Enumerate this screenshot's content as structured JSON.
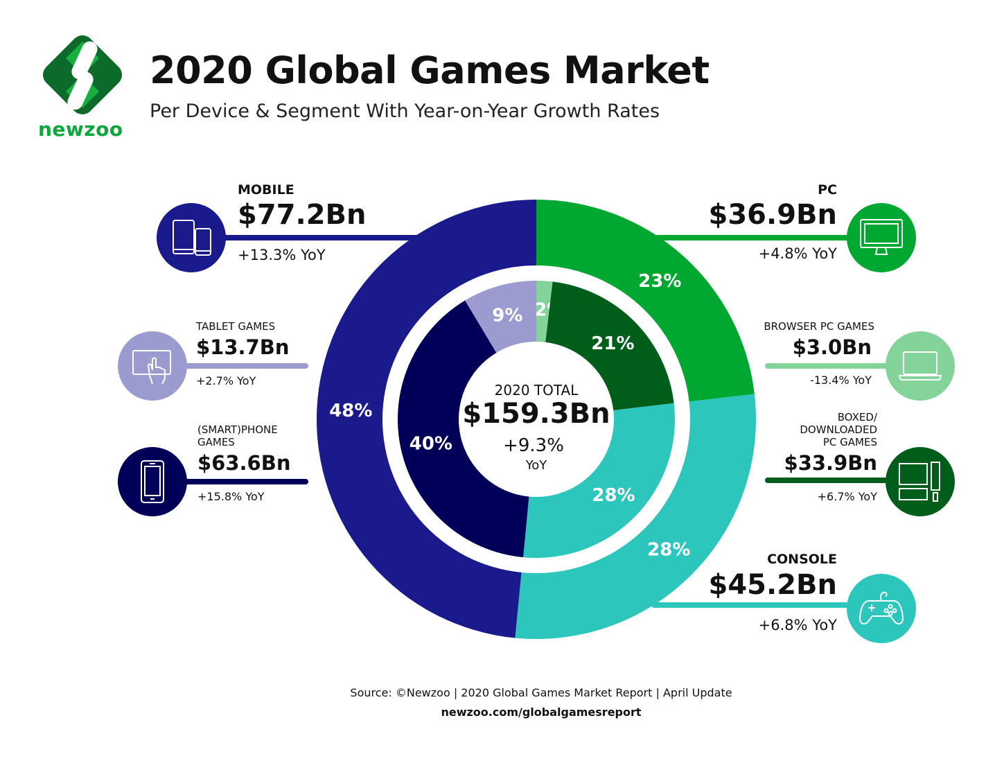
{
  "header": {
    "title": "2020 Global Games Market",
    "subtitle": "Per Device & Segment With Year-on-Year Growth Rates",
    "brand": "newzoo"
  },
  "center": {
    "label": "2020 TOTAL",
    "value": "$159.3Bn",
    "growth": "+9.3%",
    "growth_unit": "YoY"
  },
  "segments": {
    "mobile": {
      "title": "MOBILE",
      "value": "$77.2Bn",
      "yoy": "+13.3% YoY",
      "icon": "mobile-devices-icon"
    },
    "tablet": {
      "title": "TABLET GAMES",
      "value": "$13.7Bn",
      "yoy": "+2.7% YoY",
      "icon": "tablet-touch-icon"
    },
    "smartphone": {
      "title": "(SMART)PHONE GAMES",
      "value": "$63.6Bn",
      "yoy": "+15.8% YoY",
      "icon": "smartphone-icon"
    },
    "pc": {
      "title": "PC",
      "value": "$36.9Bn",
      "yoy": "+4.8% YoY",
      "icon": "monitor-icon"
    },
    "browser": {
      "title": "BROWSER PC GAMES",
      "value": "$3.0Bn",
      "yoy": "-13.4% YoY",
      "icon": "laptop-icon"
    },
    "boxed": {
      "title": "BOXED/ DOWNLOADED PC GAMES",
      "value": "$33.9Bn",
      "yoy": "+6.7% YoY",
      "icon": "desktop-computer-icon"
    },
    "console": {
      "title": "CONSOLE",
      "value": "$45.2Bn",
      "yoy": "+6.8% YoY",
      "icon": "gamepad-icon"
    }
  },
  "footer": {
    "source": "Source: ©Newzoo | 2020 Global Games Market Report | April Update",
    "url": "newzoo.com/globalgamesreport"
  },
  "chart_data": {
    "type": "pie",
    "title": "2020 Global Games Market",
    "rings": [
      {
        "ring": "outer",
        "slices": [
          {
            "name": "PC",
            "value": 36.9,
            "label": "23%",
            "color": "#00a832"
          },
          {
            "name": "CONSOLE",
            "value": 45.2,
            "label": "28%",
            "color": "#2cc6bc"
          },
          {
            "name": "MOBILE",
            "value": 77.2,
            "label": "48%",
            "color": "#1a1a8c"
          }
        ]
      },
      {
        "ring": "inner",
        "slices": [
          {
            "name": "BROWSER PC GAMES",
            "value": 3.0,
            "label": "2%",
            "color": "#84d39a"
          },
          {
            "name": "BOXED/ DOWNLOADED PC GAMES",
            "value": 33.9,
            "label": "21%",
            "color": "#005e1a"
          },
          {
            "name": "CONSOLE",
            "value": 45.2,
            "label": "28%",
            "color": "#2cc6bc"
          },
          {
            "name": "(SMART)PHONE GAMES",
            "value": 63.6,
            "label": "40%",
            "color": "#000058"
          },
          {
            "name": "TABLET GAMES",
            "value": 13.7,
            "label": "9%",
            "color": "#9b9bd0"
          }
        ]
      }
    ],
    "total": 159.3
  }
}
